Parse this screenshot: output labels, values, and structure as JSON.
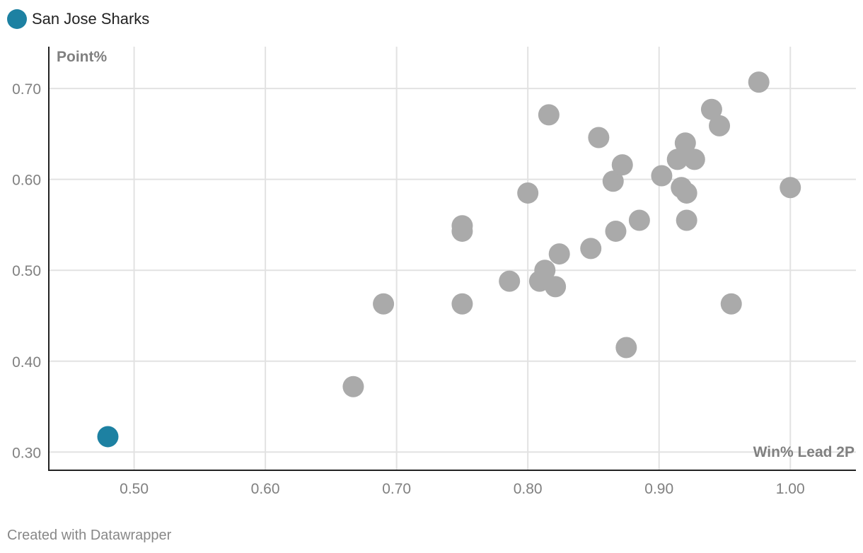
{
  "legend": {
    "label": "San Jose Sharks",
    "color": "#1d81a2"
  },
  "footer": {
    "credit": "Created with Datawrapper"
  },
  "chart_data": {
    "type": "scatter",
    "title": "",
    "xlabel": "Win% Lead 2P",
    "ylabel": "Point%",
    "xlim": [
      0.435,
      1.05
    ],
    "ylim": [
      0.28,
      0.746
    ],
    "x_ticks": [
      0.5,
      0.6,
      0.7,
      0.8,
      0.9,
      1.0
    ],
    "x_tick_labels": [
      "0.50",
      "0.60",
      "0.70",
      "0.80",
      "0.90",
      "1.00"
    ],
    "y_ticks": [
      0.3,
      0.4,
      0.5,
      0.6,
      0.7
    ],
    "y_tick_labels": [
      "0.30",
      "0.40",
      "0.50",
      "0.60",
      "0.70"
    ],
    "grid": true,
    "legend_position": "top-left",
    "other_color": "#aaaaaa",
    "highlight_color": "#1d81a2",
    "series": [
      {
        "name": "San Jose Sharks",
        "points": [
          [
            0.48,
            0.317
          ]
        ]
      },
      {
        "points": [
          [
            0.667,
            0.372
          ],
          [
            0.69,
            0.463
          ],
          [
            0.75,
            0.549
          ],
          [
            0.75,
            0.543
          ],
          [
            0.75,
            0.463
          ],
          [
            0.786,
            0.488
          ],
          [
            0.8,
            0.585
          ],
          [
            0.809,
            0.488
          ],
          [
            0.813,
            0.5
          ],
          [
            0.816,
            0.671
          ],
          [
            0.821,
            0.482
          ],
          [
            0.824,
            0.518
          ],
          [
            0.848,
            0.524
          ],
          [
            0.854,
            0.646
          ],
          [
            0.865,
            0.598
          ],
          [
            0.867,
            0.543
          ],
          [
            0.872,
            0.616
          ],
          [
            0.875,
            0.415
          ],
          [
            0.885,
            0.555
          ],
          [
            0.902,
            0.604
          ],
          [
            0.914,
            0.622
          ],
          [
            0.917,
            0.591
          ],
          [
            0.92,
            0.64
          ],
          [
            0.921,
            0.585
          ],
          [
            0.921,
            0.555
          ],
          [
            0.927,
            0.622
          ],
          [
            0.94,
            0.677
          ],
          [
            0.946,
            0.659
          ],
          [
            0.955,
            0.463
          ],
          [
            0.976,
            0.707
          ],
          [
            1.0,
            0.591
          ]
        ]
      }
    ]
  }
}
